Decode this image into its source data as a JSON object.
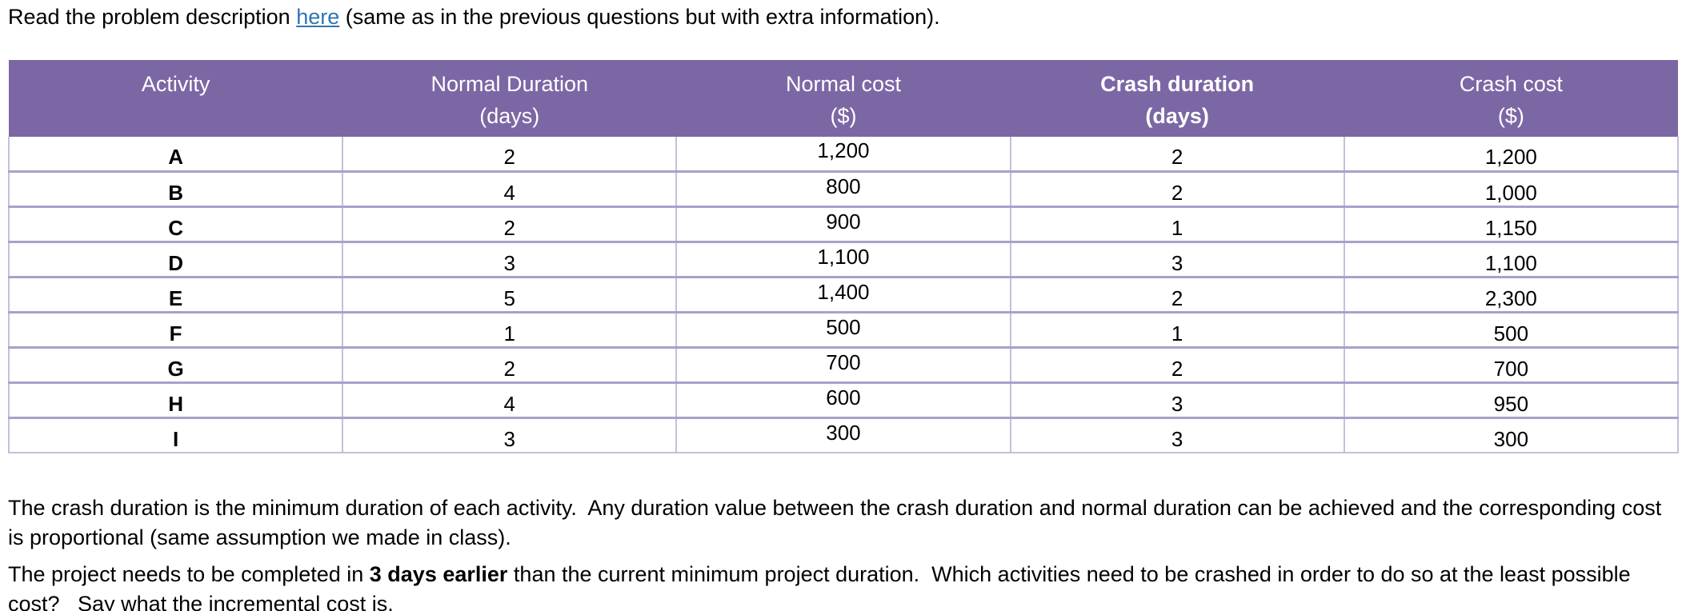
{
  "colors": {
    "header_bg": "#7C67A5",
    "border_horizontal": "#ABA0C9",
    "border_vertical": "#C7BEDC",
    "link": "#2E74B5"
  },
  "intro": {
    "before_link": "Read the problem description ",
    "link_text": "here",
    "after_link": " (same as in the previous questions but with extra information)."
  },
  "table": {
    "columns": [
      {
        "label": "Activity",
        "unit": "",
        "bold": false,
        "key": "activity"
      },
      {
        "label": "Normal Duration",
        "unit": "(days)",
        "bold": false,
        "key": "normal_duration"
      },
      {
        "label": "Normal cost",
        "unit": "($)",
        "bold": false,
        "key": "normal_cost"
      },
      {
        "label": "Crash duration",
        "unit": "(days)",
        "bold": true,
        "key": "crash_duration"
      },
      {
        "label": "Crash cost",
        "unit": "($)",
        "bold": false,
        "key": "crash_cost"
      }
    ],
    "rows": [
      {
        "activity": "A",
        "normal_duration": "2",
        "normal_cost": "1,200",
        "crash_duration": "2",
        "crash_cost": "1,200"
      },
      {
        "activity": "B",
        "normal_duration": "4",
        "normal_cost": "800",
        "crash_duration": "2",
        "crash_cost": "1,000"
      },
      {
        "activity": "C",
        "normal_duration": "2",
        "normal_cost": "900",
        "crash_duration": "1",
        "crash_cost": "1,150"
      },
      {
        "activity": "D",
        "normal_duration": "3",
        "normal_cost": "1,100",
        "crash_duration": "3",
        "crash_cost": "1,100"
      },
      {
        "activity": "E",
        "normal_duration": "5",
        "normal_cost": "1,400",
        "crash_duration": "2",
        "crash_cost": "2,300"
      },
      {
        "activity": "F",
        "normal_duration": "1",
        "normal_cost": "500",
        "crash_duration": "1",
        "crash_cost": "500"
      },
      {
        "activity": "G",
        "normal_duration": "2",
        "normal_cost": "700",
        "crash_duration": "2",
        "crash_cost": "700"
      },
      {
        "activity": "H",
        "normal_duration": "4",
        "normal_cost": "600",
        "crash_duration": "3",
        "crash_cost": "950"
      },
      {
        "activity": "I",
        "normal_duration": "3",
        "normal_cost": "300",
        "crash_duration": "3",
        "crash_cost": "300"
      }
    ]
  },
  "notes": {
    "para1": "The crash duration is the minimum duration of each activity.  Any duration value between the crash duration and normal duration can be achieved and the corresponding cost is proportional (same assumption we made in class).",
    "para2_before": "The project needs to be completed in ",
    "para2_bold": "3 days earlier",
    "para2_after": " than the current minimum project duration.  Which activities need to be crashed in order to do so at the least possible cost?   Say what the incremental cost is."
  }
}
